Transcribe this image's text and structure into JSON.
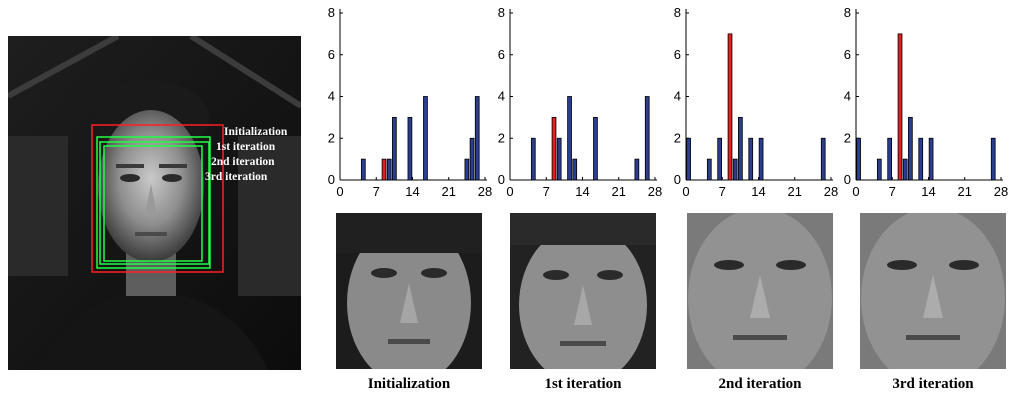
{
  "photo": {
    "labels": [
      "Initialization",
      "1st iteration",
      "2nd iteration",
      "3rd iteration"
    ],
    "box_colors": [
      "#ff2020",
      "#22ff44",
      "#22ff44",
      "#22ff44"
    ]
  },
  "captions": [
    "Initialization",
    "1st iteration",
    "2nd iteration",
    "3rd iteration"
  ],
  "colors": {
    "bar": "#2b3d8f",
    "highlight": "#e02020"
  },
  "chart_data": [
    {
      "type": "bar",
      "xticks": [
        "0",
        "7",
        "14",
        "21",
        "28"
      ],
      "yticks": [
        "0",
        "2",
        "4",
        "6",
        "8"
      ],
      "xlim": [
        0,
        28
      ],
      "ylim": [
        0,
        8
      ],
      "bars": [
        {
          "x": 4.5,
          "y": 1,
          "highlight": false
        },
        {
          "x": 8.5,
          "y": 1,
          "highlight": true
        },
        {
          "x": 9.5,
          "y": 1,
          "highlight": false
        },
        {
          "x": 10.5,
          "y": 3,
          "highlight": false
        },
        {
          "x": 13.5,
          "y": 3,
          "highlight": false
        },
        {
          "x": 16.5,
          "y": 4,
          "highlight": false
        },
        {
          "x": 24.5,
          "y": 1,
          "highlight": false
        },
        {
          "x": 25.5,
          "y": 2,
          "highlight": false
        },
        {
          "x": 26.5,
          "y": 4,
          "highlight": false
        }
      ]
    },
    {
      "type": "bar",
      "xticks": [
        "0",
        "7",
        "14",
        "21",
        "28"
      ],
      "yticks": [
        "0",
        "2",
        "4",
        "6",
        "8"
      ],
      "xlim": [
        0,
        28
      ],
      "ylim": [
        0,
        8
      ],
      "bars": [
        {
          "x": 4.5,
          "y": 2,
          "highlight": false
        },
        {
          "x": 8.5,
          "y": 3,
          "highlight": true
        },
        {
          "x": 9.5,
          "y": 2,
          "highlight": false
        },
        {
          "x": 11.5,
          "y": 4,
          "highlight": false
        },
        {
          "x": 12.5,
          "y": 1,
          "highlight": false
        },
        {
          "x": 16.5,
          "y": 3,
          "highlight": false
        },
        {
          "x": 24.5,
          "y": 1,
          "highlight": false
        },
        {
          "x": 26.5,
          "y": 4,
          "highlight": false
        }
      ]
    },
    {
      "type": "bar",
      "xticks": [
        "0",
        "7",
        "14",
        "21",
        "28"
      ],
      "yticks": [
        "0",
        "2",
        "4",
        "6",
        "8"
      ],
      "xlim": [
        0,
        28
      ],
      "ylim": [
        0,
        8
      ],
      "bars": [
        {
          "x": 0.5,
          "y": 2,
          "highlight": false
        },
        {
          "x": 4.5,
          "y": 1,
          "highlight": false
        },
        {
          "x": 6.5,
          "y": 2,
          "highlight": false
        },
        {
          "x": 8.5,
          "y": 7,
          "highlight": true
        },
        {
          "x": 9.5,
          "y": 1,
          "highlight": false
        },
        {
          "x": 10.5,
          "y": 3,
          "highlight": false
        },
        {
          "x": 12.5,
          "y": 2,
          "highlight": false
        },
        {
          "x": 14.5,
          "y": 2,
          "highlight": false
        },
        {
          "x": 26.5,
          "y": 2,
          "highlight": false
        }
      ]
    },
    {
      "type": "bar",
      "xticks": [
        "0",
        "7",
        "14",
        "21",
        "28"
      ],
      "yticks": [
        "0",
        "2",
        "4",
        "6",
        "8"
      ],
      "xlim": [
        0,
        28
      ],
      "ylim": [
        0,
        8
      ],
      "bars": [
        {
          "x": 0.5,
          "y": 2,
          "highlight": false
        },
        {
          "x": 4.5,
          "y": 1,
          "highlight": false
        },
        {
          "x": 6.5,
          "y": 2,
          "highlight": false
        },
        {
          "x": 8.5,
          "y": 7,
          "highlight": true
        },
        {
          "x": 9.5,
          "y": 1,
          "highlight": false
        },
        {
          "x": 10.5,
          "y": 3,
          "highlight": false
        },
        {
          "x": 12.5,
          "y": 2,
          "highlight": false
        },
        {
          "x": 14.5,
          "y": 2,
          "highlight": false
        },
        {
          "x": 26.5,
          "y": 2,
          "highlight": false
        }
      ]
    }
  ]
}
